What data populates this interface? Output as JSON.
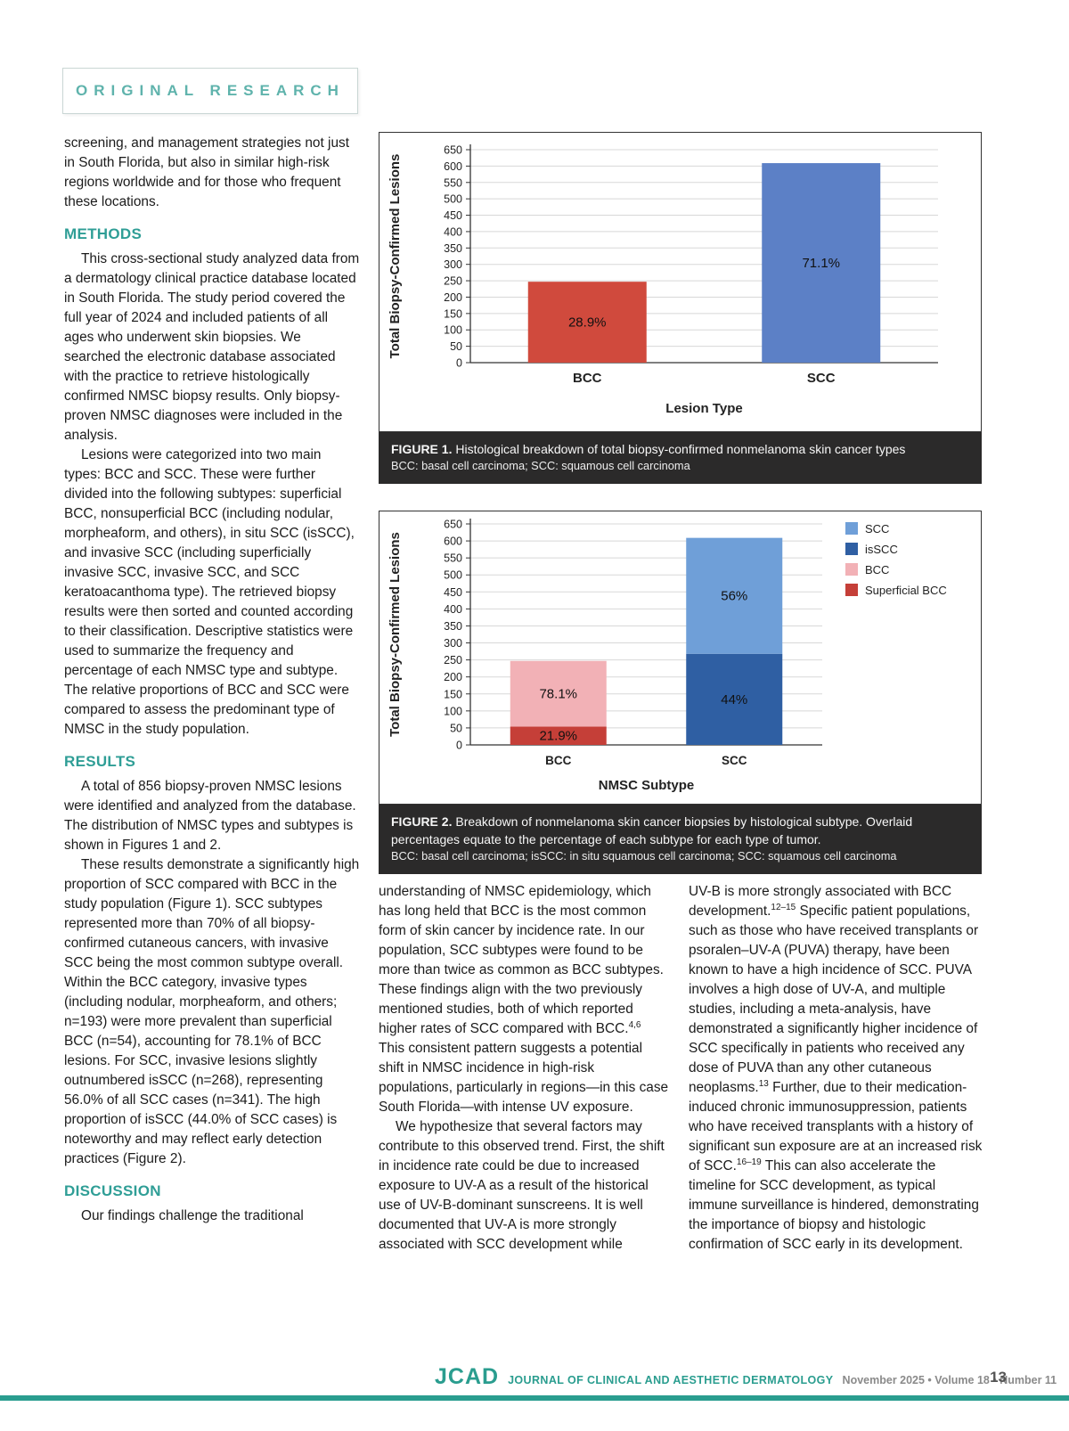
{
  "page": {
    "kicker": "ORIGINAL RESEARCH",
    "footer": {
      "logo": "JCAD",
      "journal": "JOURNAL OF CLINICAL AND AESTHETIC DERMATOLOGY",
      "issue": "November 2025 • Volume 18 • Number 11",
      "page_number": "13"
    }
  },
  "article": {
    "intro_continued": "screening, and management strategies not just in South Florida, but also in similar high-risk regions worldwide and for those who frequent these locations.",
    "sections": {
      "methods": {
        "heading": "METHODS",
        "p1": "This cross-sectional study analyzed data from a dermatology clinical practice database located in South Florida. The study period covered the full year of 2024 and included patients of all ages who underwent skin biopsies. We searched the electronic database associated with the practice to retrieve histologically confirmed NMSC biopsy results. Only biopsy-proven NMSC diagnoses were included in the analysis.",
        "p2": "Lesions were categorized into two main types: BCC and SCC. These were further divided into the following subtypes: superficial BCC, nonsuperficial BCC (including nodular, morpheaform, and others), in situ SCC (isSCC), and invasive SCC (including superficially invasive SCC, invasive SCC, and SCC keratoacanthoma type). The retrieved biopsy results were then sorted and counted according to their classification. Descriptive statistics were used to summarize the frequency and percentage of each NMSC type and subtype. The relative proportions of BCC and SCC were compared to assess the predominant type of NMSC in the study population."
      },
      "results": {
        "heading": "RESULTS",
        "p1": "A total of 856 biopsy-proven NMSC lesions were identified and analyzed from the database. The distribution of NMSC types and subtypes is shown in Figures 1 and 2.",
        "p2": "These results demonstrate a significantly high proportion of SCC compared with BCC in the study population (Figure 1). SCC subtypes represented more than 70% of all biopsy-confirmed cutaneous cancers, with invasive SCC being the most common subtype overall. Within the BCC category, invasive types (including nodular, morpheaform, and others; n=193) were more prevalent than superficial BCC (n=54), accounting for 78.1% of BCC lesions. For SCC, invasive lesions slightly outnumbered isSCC (n=268), representing 56.0% of all SCC cases (n=341). The high proportion of isSCC (44.0% of SCC cases) is noteworthy and may reflect early detection practices (Figure 2)."
      },
      "discussion": {
        "heading": "DISCUSSION",
        "p1": "Our findings challenge the traditional"
      }
    },
    "col2": {
      "p1": [
        "understanding of NMSC epidemiology, which has long held that BCC is the most common form of skin cancer by incidence rate. In our population, SCC subtypes were found to be more than twice as common as BCC subtypes. These findings align with the two previously mentioned studies, both of which reported higher rates of SCC compared with BCC.",
        {
          "sup": "4,6"
        },
        " This consistent pattern suggests a potential shift in NMSC incidence in high-risk populations, particularly in regions—in this case South Florida—with intense UV exposure."
      ],
      "p2": "We hypothesize that several factors may contribute to this observed trend. First, the shift in incidence rate could be due to increased exposure to UV-A as a result of the historical use of UV-B-dominant sunscreens. It is well documented that UV-A is more strongly associated with SCC development while"
    },
    "col3": {
      "p1": [
        "UV-B is more strongly associated with BCC development.",
        {
          "sup": "12–15"
        },
        " Specific patient populations, such as those who have received transplants or psoralen–UV-A (PUVA) therapy, have been known to have a high incidence of SCC. PUVA involves a high dose of UV-A, and multiple studies, including a meta-analysis, have demonstrated a significantly higher incidence of SCC specifically in patients who received any dose of PUVA than any other cutaneous neoplasms.",
        {
          "sup": "13"
        },
        " Further, due to their medication-induced chronic immunosuppression, patients who have received transplants with a history of significant sun exposure are at an increased risk of SCC.",
        {
          "sup": "16–19"
        },
        " This can also accelerate the timeline for SCC development, as typical immune surveillance is hindered, demonstrating the importance of biopsy and histologic confirmation of SCC early in its development."
      ]
    }
  },
  "figures": {
    "fig1": {
      "label": "FIGURE 1.",
      "caption": "Histological breakdown of total biopsy-confirmed nonmelanoma skin cancer types",
      "footnote": "BCC: basal cell carcinoma; SCC: squamous cell carcinoma"
    },
    "fig2": {
      "label": "FIGURE 2.",
      "caption": "Breakdown of nonmelanoma skin cancer biopsies by histological subtype. Overlaid percentages equate to the percentage of each subtype for each type of tumor.",
      "footnote": "BCC: basal cell carcinoma; isSCC: in situ squamous cell carcinoma; SCC: squamous cell carcinoma"
    }
  },
  "chart_data": [
    {
      "name": "figure-1",
      "type": "bar",
      "title": "",
      "xlabel": "Lesion Type",
      "ylabel": "Total Biopsy-Confirmed Lesions",
      "ylim": [
        0,
        650
      ],
      "ytick_step": 50,
      "grid": true,
      "legend": null,
      "bars": [
        {
          "category": "BCC",
          "segments": [
            {
              "label": "BCC",
              "value": 247,
              "pct": "28.9%",
              "color": "#d04a3d"
            }
          ]
        },
        {
          "category": "SCC",
          "segments": [
            {
              "label": "SCC",
              "value": 609,
              "pct": "71.1%",
              "color": "#5c80c6"
            }
          ]
        }
      ]
    },
    {
      "name": "figure-2",
      "type": "stacked-bar",
      "title": "",
      "xlabel": "NMSC Subtype",
      "ylabel": "Total Biopsy-Confirmed Lesions",
      "ylim": [
        0,
        650
      ],
      "ytick_step": 50,
      "grid": true,
      "legend": [
        {
          "label": "SCC",
          "color": "#6f9fd8"
        },
        {
          "label": "isSCC",
          "color": "#2f5fa3"
        },
        {
          "label": "BCC",
          "color": "#f2b1b6"
        },
        {
          "label": "Superficial BCC",
          "color": "#c53f38"
        }
      ],
      "bars": [
        {
          "category": "BCC",
          "segments": [
            {
              "label": "Superficial BCC",
              "value": 54,
              "pct": "21.9%",
              "color": "#c53f38"
            },
            {
              "label": "BCC",
              "value": 193,
              "pct": "78.1%",
              "color": "#f2b1b6"
            }
          ]
        },
        {
          "category": "SCC",
          "segments": [
            {
              "label": "isSCC",
              "value": 268,
              "pct": "44%",
              "color": "#2f5fa3"
            },
            {
              "label": "SCC",
              "value": 341,
              "pct": "56%",
              "color": "#6f9fd8"
            }
          ]
        }
      ]
    }
  ]
}
